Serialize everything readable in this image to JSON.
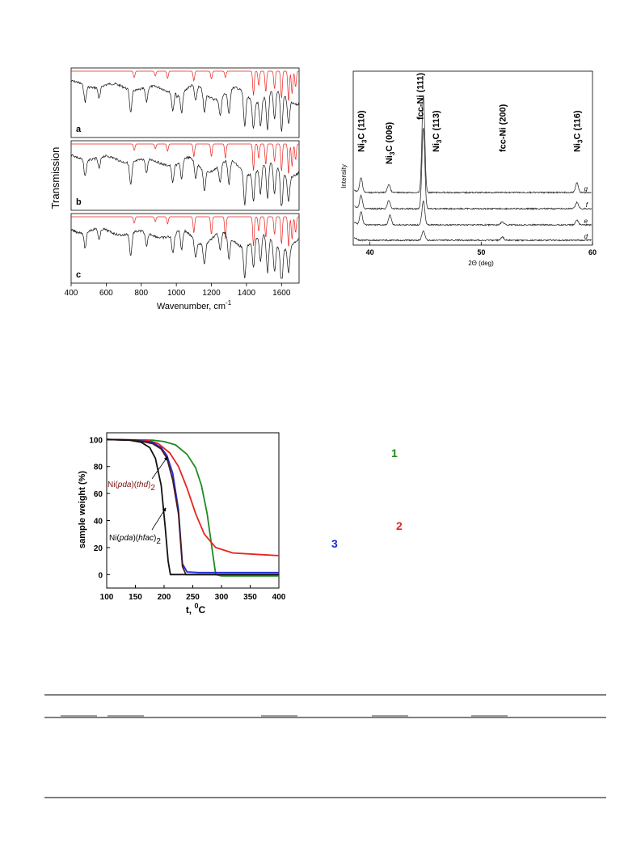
{
  "ir_figure": {
    "ylabel": "Transmission",
    "xlabel_main": "Wavenumber, cm",
    "xlabel_sup": "-1",
    "xlim": [
      400,
      1700
    ],
    "xticks": [
      "400",
      "600",
      "800",
      "1000",
      "1200",
      "1400",
      "1600"
    ],
    "panels": [
      {
        "label": "a"
      },
      {
        "label": "b"
      },
      {
        "label": "c"
      }
    ],
    "colors": {
      "red": "#e8231f",
      "black": "#111111"
    }
  },
  "xrd_figure": {
    "ylabel": "Intensity",
    "xlabel": "2Θ (deg)",
    "xlim": [
      38.5,
      60
    ],
    "xticks": [
      "40",
      "50",
      "60"
    ],
    "peak_labels": [
      {
        "prefix": "Ni",
        "sub": "3",
        "suffix": "C (110)",
        "x": 39.2
      },
      {
        "prefix": "Ni",
        "sub": "3",
        "suffix": "C (006)",
        "x": 41.7
      },
      {
        "prefix": "fcc-Ni (111)",
        "sub": "",
        "suffix": "",
        "x": 44.5
      },
      {
        "prefix": "Ni",
        "sub": "3",
        "suffix": "C (113)",
        "x": 45.9
      },
      {
        "prefix": "fcc-Ni (200)",
        "sub": "",
        "suffix": "",
        "x": 51.9
      },
      {
        "prefix": "Ni",
        "sub": "3",
        "suffix": "C (116)",
        "x": 58.6
      }
    ],
    "series_labels": [
      "g",
      "f",
      "e",
      "d"
    ]
  },
  "tga_figure": {
    "ylabel": "sample weight (%)",
    "xlabel": "t, ",
    "xlabel_sup": "0",
    "xlabel_unit": "C",
    "annotations": {
      "thd": {
        "pre": "Ni(",
        "pda": "pda",
        "mid": ")(",
        "lig": "thd",
        "post": ")",
        "sub": "2"
      },
      "hfac": {
        "pre": "Ni(",
        "pda": "pda",
        "mid": ")(",
        "lig": "hfac",
        "post": ")",
        "sub": "2"
      }
    }
  },
  "chart_data": [
    {
      "type": "line",
      "xlabel": "2Θ (deg)",
      "ylabel": "Intensity",
      "xlim": [
        38.5,
        60
      ],
      "series": [
        {
          "name": "g",
          "peaks": [
            39.2,
            41.7,
            44.8,
            58.6
          ]
        },
        {
          "name": "f",
          "peaks": [
            39.2,
            41.7,
            44.8,
            58.6
          ]
        },
        {
          "name": "e",
          "peaks": [
            39.2,
            41.8,
            44.8,
            51.9,
            58.6
          ]
        },
        {
          "name": "d",
          "peaks": [
            44.8,
            51.9
          ]
        }
      ]
    },
    {
      "type": "line",
      "xlabel": "t, 0C",
      "ylabel": "sample weight (%)",
      "xlim": [
        100,
        400
      ],
      "ylim": [
        -10,
        105
      ],
      "xticks": [
        100,
        150,
        200,
        250,
        300,
        350,
        400
      ],
      "yticks": [
        0,
        20,
        40,
        60,
        80,
        100
      ],
      "series": [
        {
          "name": "1",
          "color": "#1f8a1f",
          "x": [
            100,
            180,
            200,
            220,
            240,
            255,
            265,
            275,
            285,
            290,
            300,
            400
          ],
          "y": [
            100,
            99.5,
            98.5,
            96,
            89,
            79,
            66,
            45,
            15,
            0,
            -1,
            -1
          ]
        },
        {
          "name": "2",
          "color": "#e8231f",
          "x": [
            100,
            170,
            190,
            210,
            225,
            240,
            255,
            270,
            290,
            320,
            360,
            400
          ],
          "y": [
            100,
            99.5,
            97,
            90,
            80,
            64,
            45,
            30,
            20,
            16,
            15,
            14
          ]
        },
        {
          "name": "3",
          "color": "#1f2bd6",
          "x": [
            100,
            150,
            180,
            195,
            205,
            215,
            225,
            232,
            240,
            260,
            400
          ],
          "y": [
            100,
            99.5,
            98,
            94,
            88,
            75,
            48,
            8,
            2,
            1.5,
            1.5
          ]
        },
        {
          "name": "",
          "color": "#4a1a1a",
          "x": [
            100,
            150,
            180,
            195,
            205,
            215,
            225,
            232,
            238,
            400
          ],
          "y": [
            100,
            99.5,
            97,
            93,
            86,
            70,
            45,
            6,
            0,
            0
          ]
        },
        {
          "name": "",
          "color": "#111111",
          "x": [
            100,
            140,
            160,
            175,
            185,
            195,
            202,
            207,
            211,
            215,
            400
          ],
          "y": [
            100,
            99.5,
            98,
            94,
            86,
            66,
            35,
            10,
            0,
            0,
            0
          ]
        }
      ],
      "labels": [
        "1",
        "2",
        "3"
      ]
    }
  ]
}
